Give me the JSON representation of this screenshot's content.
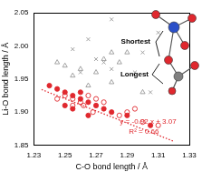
{
  "chart_data": {
    "type": "scatter",
    "x_label": "C-O bond length / Å",
    "y_label": "Li-O bond length / Å",
    "xlim": [
      1.23,
      1.33
    ],
    "xticks": [
      1.23,
      1.25,
      1.27,
      1.29,
      1.31,
      1.33
    ],
    "ylim": [
      1.85,
      2.05
    ],
    "yticks": [
      {
        "value": 1.85,
        "label": "1.85"
      },
      {
        "value": 1.9,
        "label": "1.90"
      },
      {
        "value": 1.95,
        "label": "1.95"
      },
      {
        "value": 2.0,
        "label": "2.00"
      },
      {
        "value": 2.05,
        "label": "2.05"
      }
    ],
    "grid": false,
    "annotations": [
      "Shortest",
      "Longest",
      "y = -0.92 x + 3.07",
      "R² = 0.66"
    ],
    "series": [
      {
        "color": "#e0282e",
        "marker": "circle",
        "x": [
          1.24,
          1.245,
          1.25,
          1.255,
          1.26,
          1.265,
          1.27,
          1.255,
          1.26,
          1.275,
          1.28,
          1.29,
          1.305,
          1.25,
          1.265
        ],
        "values": [
          1.94,
          1.935,
          1.93,
          1.925,
          1.92,
          1.915,
          1.91,
          1.905,
          1.93,
          1.905,
          1.9,
          1.895,
          1.88,
          1.91,
          1.895
        ]
      },
      {
        "color": "#e0282e",
        "marker": "open_circle",
        "x": [
          1.245,
          1.25,
          1.255,
          1.26,
          1.262,
          1.265,
          1.27,
          1.268,
          1.275,
          1.285,
          1.29,
          1.295,
          1.3,
          1.31,
          1.255
        ],
        "values": [
          1.92,
          1.925,
          1.92,
          1.915,
          1.91,
          1.925,
          1.92,
          1.9,
          1.915,
          1.895,
          1.9,
          1.905,
          1.885,
          1.88,
          1.91
        ]
      },
      {
        "color": "#999999",
        "marker": "cross",
        "x": [
          1.28,
          1.255,
          1.265,
          1.27,
          1.275,
          1.3,
          1.31,
          1.26,
          1.28,
          1.295,
          1.305
        ],
        "values": [
          2.04,
          1.995,
          2.01,
          1.98,
          1.975,
          1.99,
          2.02,
          1.96,
          1.965,
          1.96,
          1.93
        ]
      },
      {
        "color": "#999999",
        "marker": "open_triangle",
        "x": [
          1.245,
          1.25,
          1.26,
          1.27,
          1.275,
          1.28,
          1.285,
          1.29,
          1.255,
          1.3,
          1.265,
          1.28
        ],
        "values": [
          1.975,
          1.97,
          1.965,
          1.96,
          1.98,
          1.99,
          1.975,
          1.99,
          1.955,
          1.93,
          1.94,
          1.945
        ]
      },
      {
        "type": "line",
        "color": "#e0282e",
        "line_style": "dotted",
        "x": [
          1.235,
          1.32
        ],
        "values": [
          1.934,
          1.856
        ]
      }
    ]
  }
}
